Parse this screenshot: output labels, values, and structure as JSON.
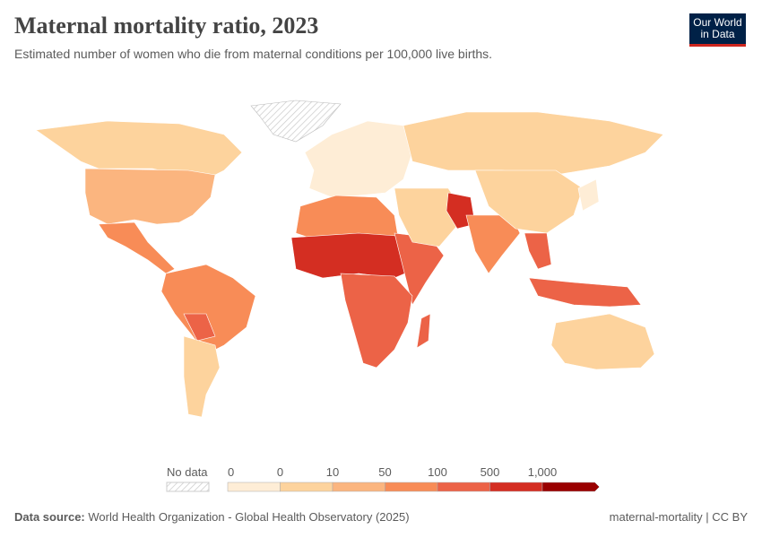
{
  "header": {
    "title": "Maternal mortality ratio, 2023",
    "subtitle": "Estimated number of women who die from maternal conditions per 100,000 live births.",
    "logo_text": "Our World in Data"
  },
  "legend": {
    "no_data_label": "No data",
    "bins": [
      {
        "label": "0",
        "color": "#feedd6"
      },
      {
        "label": "0",
        "color": "#fdd39d"
      },
      {
        "label": "10",
        "color": "#fbb57f"
      },
      {
        "label": "50",
        "color": "#f88c57"
      },
      {
        "label": "100",
        "color": "#ec6347"
      },
      {
        "label": "500",
        "color": "#d42e22"
      },
      {
        "label": "1,000",
        "color": "#990000"
      }
    ]
  },
  "footer": {
    "source_label": "Data source:",
    "source": "World Health Organization - Global Health Observatory (2025)",
    "slug": "maternal-mortality | CC BY"
  }
}
